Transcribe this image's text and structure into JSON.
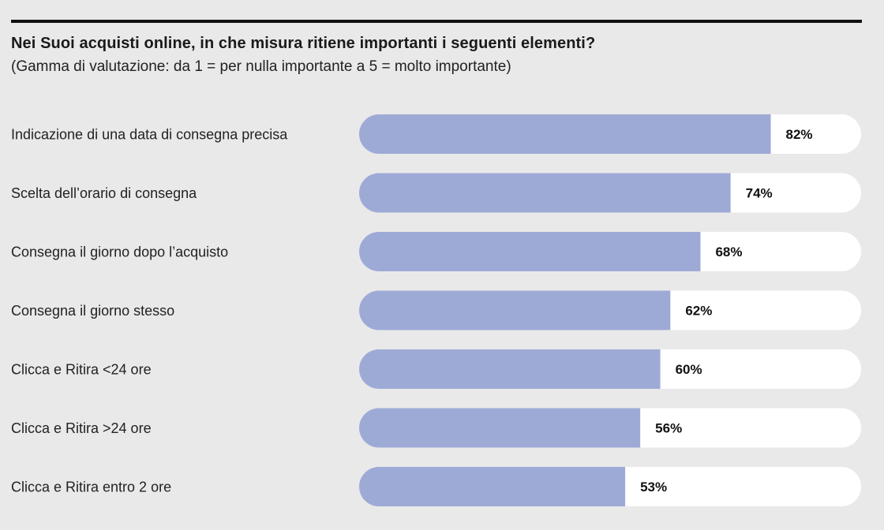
{
  "chart_data": {
    "type": "bar",
    "orientation": "horizontal",
    "title": "Nei Suoi acquisti online, in che misura ritiene importanti i seguenti elementi?",
    "subtitle": "(Gamma di valutazione: da 1 = per nulla importante a 5 = molto importante)",
    "categories": [
      "Indicazione di una data di consegna precisa",
      "Scelta dell’orario di consegna",
      "Consegna il giorno dopo l’acquisto",
      "Consegna il giorno stesso",
      "Clicca e Ritira <24 ore",
      "Clicca e Ritira >24 ore",
      "Clicca e Ritira entro 2 ore"
    ],
    "values": [
      82,
      74,
      68,
      62,
      60,
      56,
      53
    ],
    "value_labels": [
      "82%",
      "74%",
      "68%",
      "62%",
      "60%",
      "56%",
      "53%"
    ],
    "unit": "%",
    "xlim": [
      0,
      100
    ],
    "grid": false,
    "legend": "none"
  },
  "colors": {
    "background": "#e9e9e9",
    "bar_fill": "#9eaad6",
    "bar_track": "#ffffff",
    "rule": "#111111",
    "text": "#222222"
  }
}
